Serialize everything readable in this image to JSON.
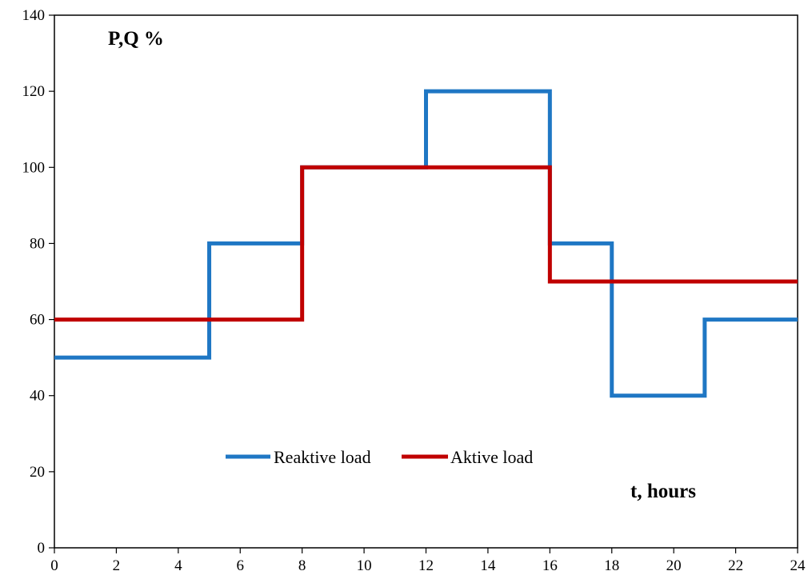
{
  "chart_data": {
    "type": "line",
    "step": true,
    "title": "",
    "xlabel": "t, hours",
    "ylabel": "P,Q %",
    "xlim": [
      0,
      24
    ],
    "ylim": [
      0,
      140
    ],
    "xticks": [
      0,
      2,
      4,
      6,
      8,
      10,
      12,
      14,
      16,
      18,
      20,
      22,
      24
    ],
    "yticks": [
      0,
      20,
      40,
      60,
      80,
      100,
      120,
      140
    ],
    "grid": false,
    "legend": "lower-center",
    "series": [
      {
        "name": "Reaktive load",
        "color": "#1f77c4",
        "x": [
          0,
          5,
          8,
          12,
          16,
          18,
          21,
          24
        ],
        "y": [
          50,
          80,
          100,
          120,
          80,
          40,
          60,
          60
        ]
      },
      {
        "name": "Aktive load",
        "color": "#c00000",
        "x": [
          0,
          8,
          16,
          24
        ],
        "y": [
          60,
          100,
          70,
          70
        ]
      }
    ]
  }
}
